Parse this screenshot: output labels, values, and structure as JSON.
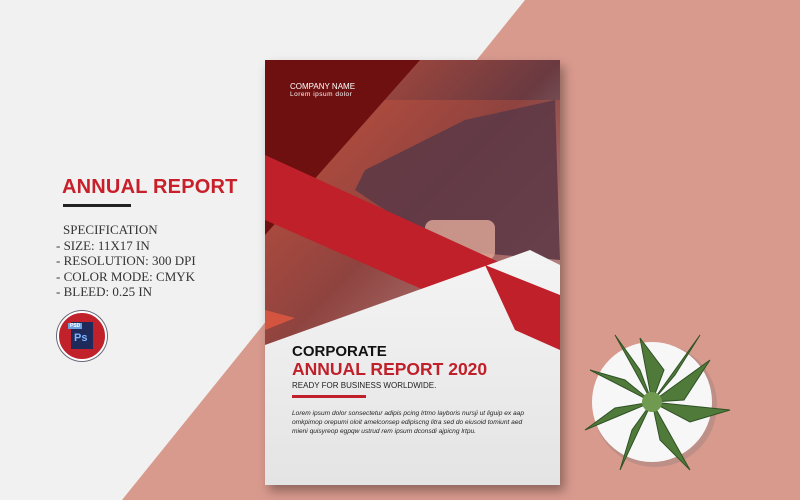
{
  "sidebar": {
    "title": "ANNUAL REPORT",
    "spec_heading": "SPECIFICATION",
    "specs": [
      "- SIZE: 11X17 IN",
      "- RESOLUTION: 300 DPI",
      "- COLOR MODE: CMYK",
      "- BLEED: 0.25 IN"
    ],
    "badge": {
      "tag": "PSD",
      "label": "Ps"
    }
  },
  "cover": {
    "company": "COMPANY NAME",
    "company_sub": "Lorem ipsum dolor",
    "heading1": "CORPORATE",
    "heading2": "ANNUAL REPORT 2020",
    "tagline": "READY FOR BUSINESS WORLDWIDE.",
    "body": "Lorem ipsum dolor sonsectetur adipis pcing lrtmo layboris nursji ut liguip ex aap omkpimop orepumi oloit amelconsep edipiscng litra sed do eiusoid tomiunt aed mieni quisyreop egpqw ustrud rem ipsum dconsdi ajpicng lrtpu."
  },
  "colors": {
    "accent": "#c0202a",
    "background": "#f1f1f1",
    "backdrop": "#d99a8e",
    "dark_red": "#6e1010"
  }
}
